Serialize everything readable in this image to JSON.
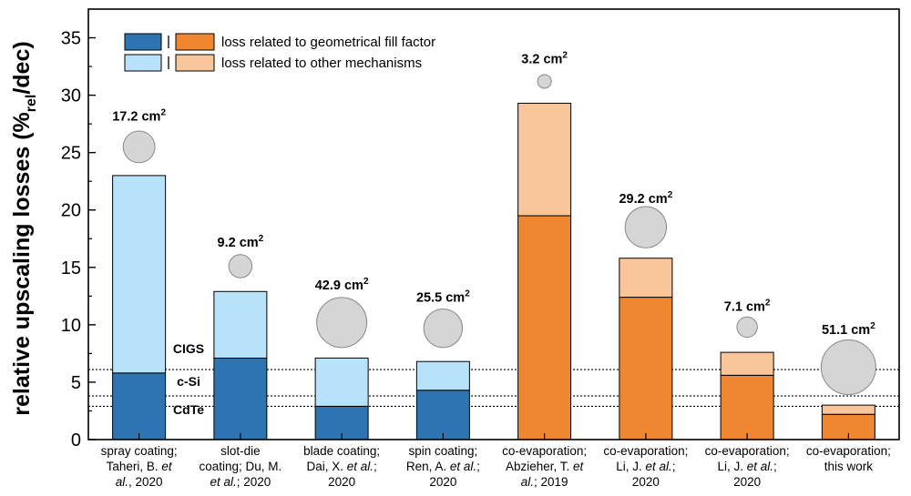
{
  "chart_data": {
    "type": "bar",
    "stacked": true,
    "ylabel": {
      "pre": "relative upscaling losses (%",
      "sub": "rel",
      "post": "/dec)"
    },
    "ylim": [
      0,
      37.5
    ],
    "yticks": [
      0,
      5,
      10,
      15,
      20,
      25,
      30,
      35
    ],
    "categories": [
      [
        "spray coating;",
        "Taheri, B. |et|",
        "|al.|, 2020"
      ],
      [
        "slot-die",
        "coating; Du, M.",
        "|et al.|; 2020"
      ],
      [
        "blade coating;",
        "Dai, X. |et al.|;",
        "2020"
      ],
      [
        "spin coating;",
        "Ren, A. |et al.|;",
        "2020"
      ],
      [
        "co-evaporation;",
        "Abzieher, T. |et|",
        "|al.|; 2019"
      ],
      [
        "co-evaporation;",
        "Li, J. |et al.|;",
        "2020"
      ],
      [
        "co-evaporation;",
        "Li, J. |et al.|;",
        "2020"
      ],
      [
        "co-evaporation;",
        "this work"
      ]
    ],
    "series": [
      {
        "name": "loss related to geometrical fill factor",
        "values": [
          5.8,
          7.1,
          2.9,
          4.3,
          19.5,
          12.4,
          5.6,
          2.2
        ]
      },
      {
        "name": "loss related to other mechanisms",
        "values": [
          17.2,
          5.8,
          4.2,
          2.5,
          9.8,
          3.4,
          2.0,
          0.8
        ]
      }
    ],
    "group": [
      "blue",
      "blue",
      "blue",
      "blue",
      "orange",
      "orange",
      "orange",
      "orange"
    ],
    "module_area_cm2": [
      17.2,
      9.2,
      42.9,
      25.5,
      3.2,
      29.2,
      7.1,
      51.1
    ],
    "bubble_y": [
      25.5,
      15.1,
      10.2,
      9.7,
      31.2,
      18.5,
      9.8,
      6.3
    ],
    "area_label_y": [
      27.8,
      16.8,
      13.1,
      12.0,
      32.8,
      20.6,
      11.2,
      9.2
    ],
    "area_unit": "cm",
    "area_exp": "2",
    "reference_lines": [
      {
        "label": "CIGS",
        "value": 6.1
      },
      {
        "label": "c-Si",
        "value": 3.8
      },
      {
        "label": "CdTe",
        "value": 2.9
      }
    ],
    "colors": {
      "blue_dark": "#2e74b0",
      "blue_light": "#b8e2fa",
      "orange_dark": "#ef8730",
      "orange_light": "#f9c59b",
      "bubble": "#d5d5d5"
    }
  }
}
